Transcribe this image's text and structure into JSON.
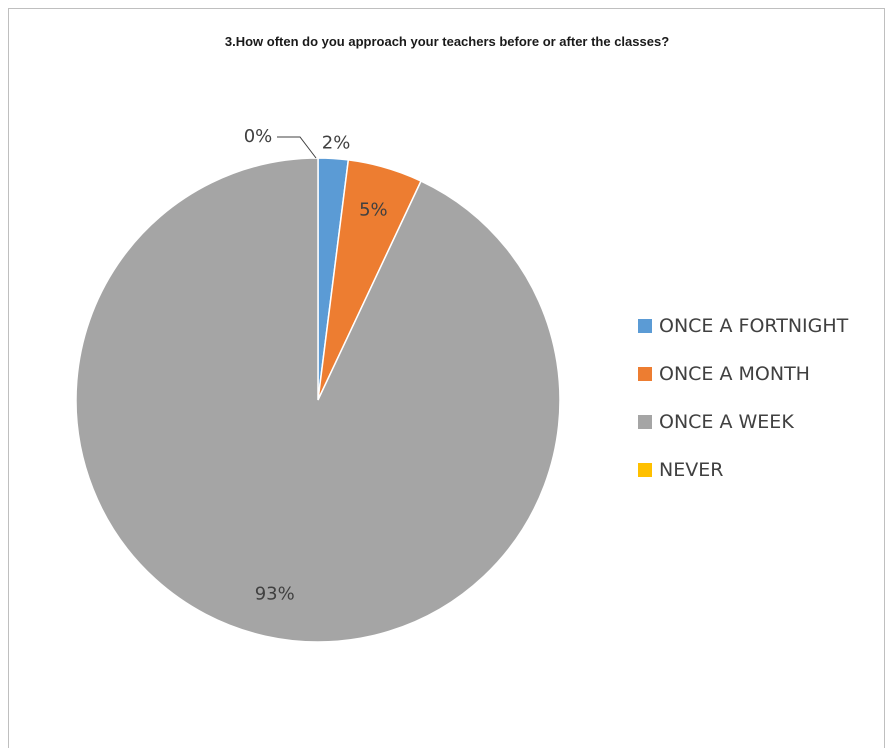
{
  "chart_data": {
    "type": "pie",
    "title": "3.How often do you approach your teachers before or after the classes?",
    "slices": [
      {
        "label": "ONCE A FORTNIGHT",
        "value": 2,
        "display": "2%",
        "color": "#5b9bd5"
      },
      {
        "label": "ONCE A MONTH",
        "value": 5,
        "display": "5%",
        "color": "#ed7d31"
      },
      {
        "label": "ONCE A WEEK",
        "value": 93,
        "display": "93%",
        "color": "#a5a5a5"
      },
      {
        "label": "NEVER",
        "value": 0,
        "display": "0%",
        "color": "#ffc000"
      }
    ],
    "legend_position": "right"
  }
}
